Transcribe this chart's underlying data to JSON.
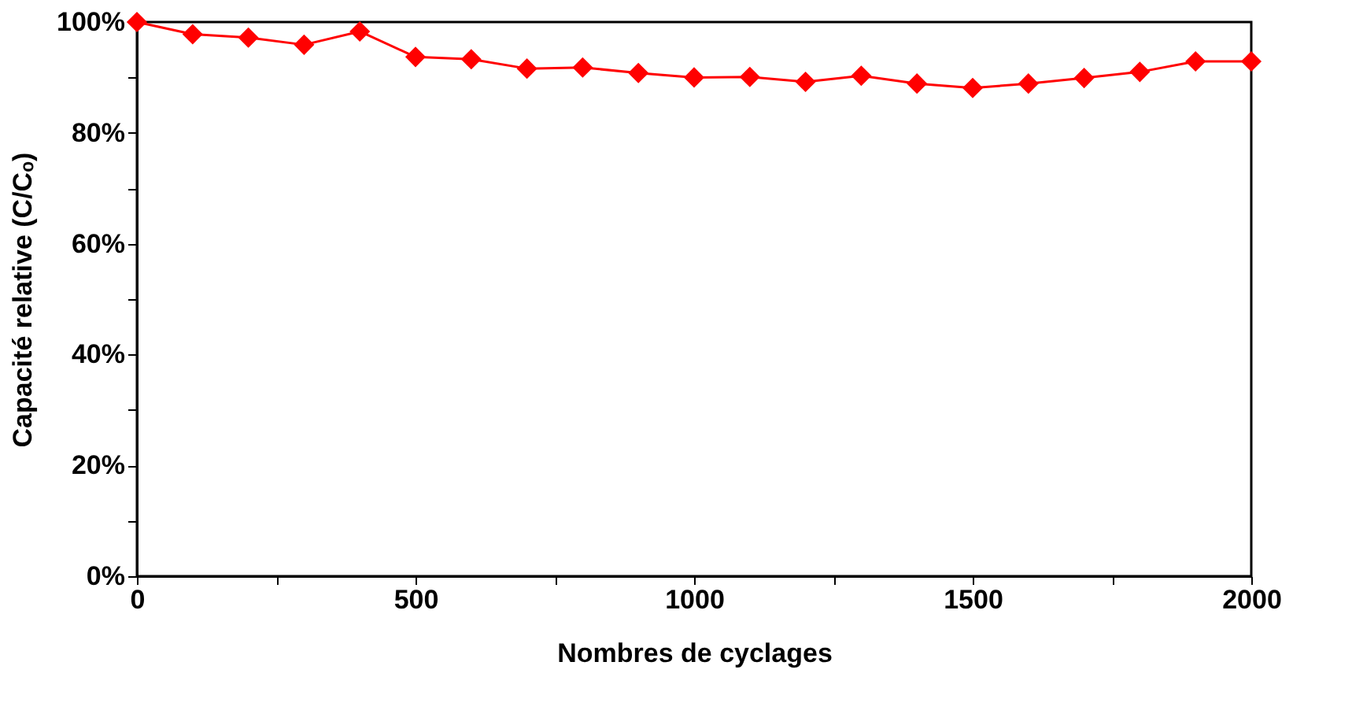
{
  "chart_data": {
    "type": "line",
    "xlabel": "Nombres de cyclages",
    "ylabel": "Capacité relative (C/Cₒ)",
    "x": [
      0,
      100,
      200,
      300,
      400,
      500,
      600,
      700,
      800,
      900,
      1000,
      1100,
      1200,
      1300,
      1400,
      1500,
      1600,
      1700,
      1800,
      1900,
      2000
    ],
    "series": [
      {
        "color": "#ff0000",
        "values": [
          100,
          97.8,
          97.2,
          95.9,
          98.3,
          93.7,
          93.3,
          91.6,
          91.8,
          90.8,
          90.0,
          90.1,
          89.2,
          90.3,
          88.9,
          88.1,
          88.9,
          89.9,
          91.0,
          92.9,
          92.9
        ]
      }
    ],
    "xlim": [
      0,
      2000
    ],
    "xticks": [
      0,
      {
        "value": 250,
        "label": null
      },
      500,
      {
        "value": 750,
        "label": null
      },
      1000,
      {
        "value": 1250,
        "label": null
      },
      1500,
      {
        "value": 1750,
        "label": null
      },
      2000
    ],
    "ylim": [
      0,
      100
    ],
    "yticks": [
      {
        "value": 0,
        "label": "0%"
      },
      {
        "value": 10,
        "label": null
      },
      {
        "value": 20,
        "label": "20%"
      },
      {
        "value": 30,
        "label": null
      },
      {
        "value": 40,
        "label": "40%"
      },
      {
        "value": 50,
        "label": null
      },
      {
        "value": 60,
        "label": "60%"
      },
      {
        "value": 70,
        "label": null
      },
      {
        "value": 80,
        "label": "80%"
      },
      {
        "value": 90,
        "label": null
      },
      {
        "value": 100,
        "label": "100%"
      }
    ],
    "marker": "diamond",
    "line_style": "solid",
    "grid": false
  }
}
